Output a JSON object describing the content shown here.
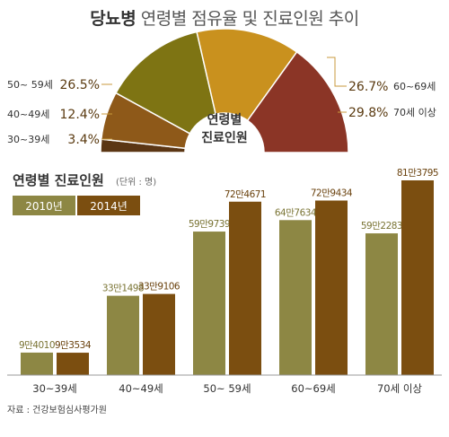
{
  "title_bold": "당뇨병",
  "title_rest": " 연령별 점유율 및 진료인원 추이",
  "source": "자료 : 건강보험심사평가원",
  "colors": {
    "y2010": "#8d8744",
    "y2014": "#7b4e10",
    "share_50_59": "#7e7413",
    "share_40_49": "#8e5919",
    "share_30_39": "#5b3614",
    "share_60_69": "#c9911e",
    "share_70": "#8b3526"
  },
  "chart_data": [
    {
      "type": "pie",
      "title": "당뇨병 연령별 점유율",
      "center_label": [
        "연령별",
        "진료인원"
      ],
      "slices": [
        {
          "label": "30~39세",
          "value": 3.4,
          "value_label": "3.4%"
        },
        {
          "label": "40~49세",
          "value": 12.4,
          "value_label": "12.4%"
        },
        {
          "label": "50~ 59세",
          "value": 26.5,
          "value_label": "26.5%"
        },
        {
          "label": "60~69세",
          "value": 26.7,
          "value_label": "26.7%"
        },
        {
          "label": "70세 이상",
          "value": 29.8,
          "value_label": "29.8%"
        }
      ]
    },
    {
      "type": "bar",
      "title": "연령별 진료인원",
      "unit": "(단위 : 명)",
      "categories": [
        "30~39세",
        "40~49세",
        "50~ 59세",
        "60~69세",
        "70세 이상"
      ],
      "series": [
        {
          "name": "2010년",
          "values": [
            94010,
            331498,
            599739,
            647634,
            592283
          ],
          "labels": [
            "9만4010",
            "33만1498",
            "59만9739",
            "64만7634",
            "59만2283"
          ]
        },
        {
          "name": "2014년",
          "values": [
            93534,
            339106,
            724671,
            729434,
            813795
          ],
          "labels": [
            "9만3534",
            "33만9106",
            "72만4671",
            "72만9434",
            "81만3795"
          ]
        }
      ],
      "ylim": [
        0,
        900000
      ]
    }
  ]
}
